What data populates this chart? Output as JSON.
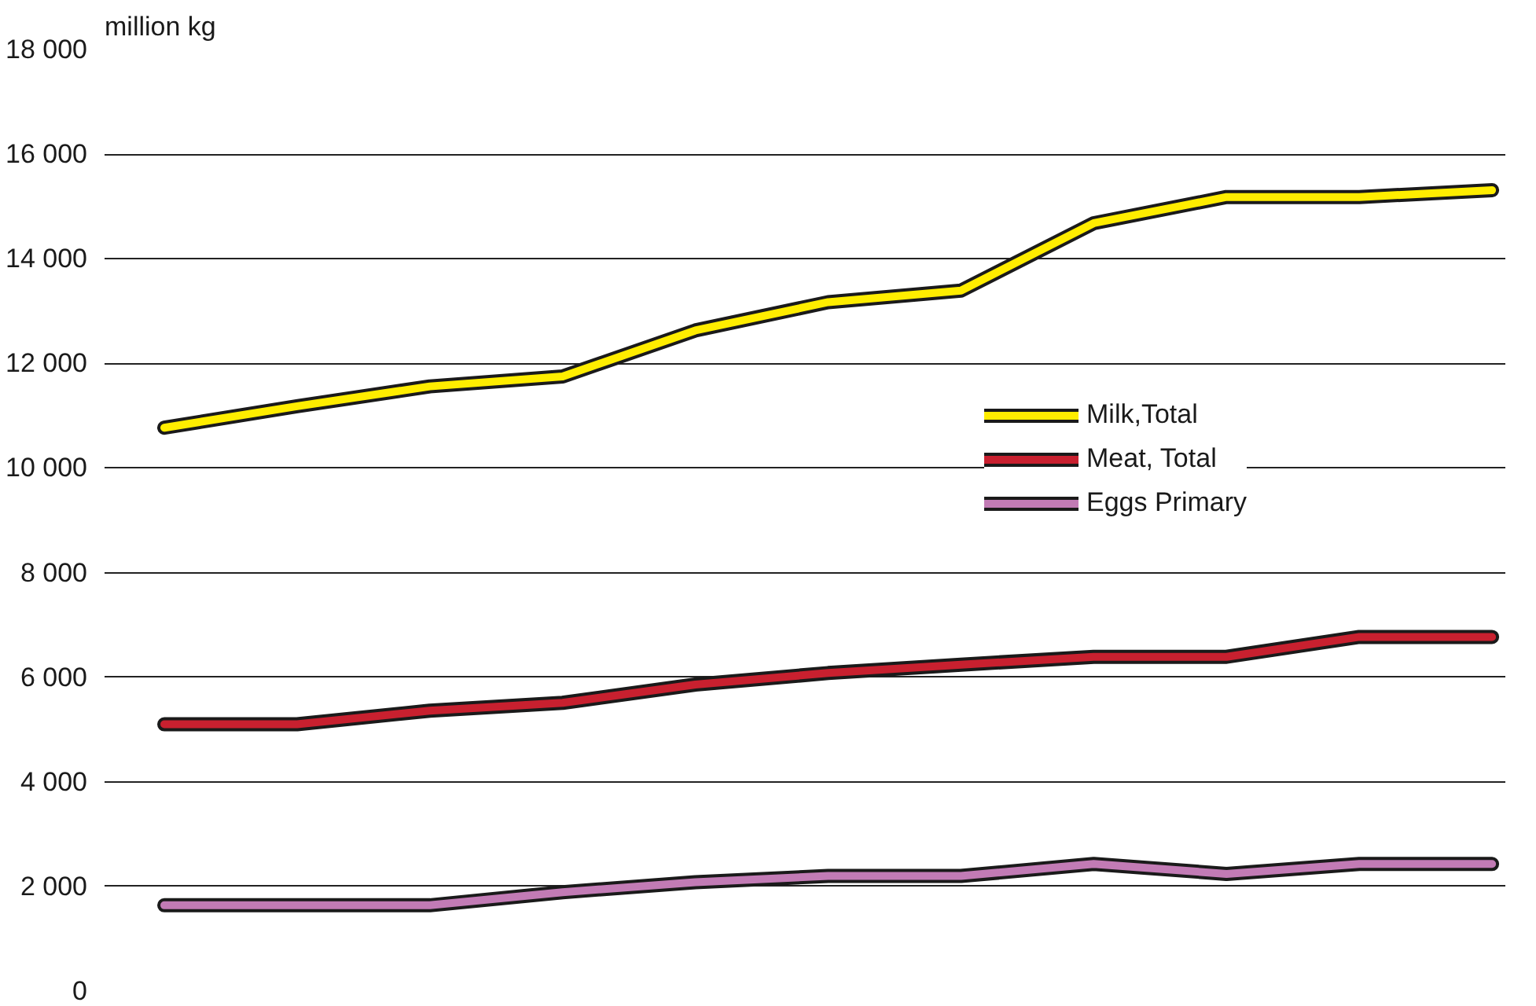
{
  "chart_data": {
    "type": "line",
    "ylabel": "million kg",
    "categories": [
      null,
      null,
      null,
      null,
      null,
      null,
      null,
      null,
      null,
      null,
      null
    ],
    "series": [
      {
        "name": "Milk,Total",
        "color": "#ffed00",
        "values": [
          10770,
          11180,
          11560,
          11750,
          12630,
          13170,
          13390,
          14680,
          15180,
          15180,
          15310
        ]
      },
      {
        "name": "Meat, Total",
        "color": "#c8202f",
        "values": [
          5100,
          5100,
          5360,
          5510,
          5860,
          6080,
          6240,
          6390,
          6390,
          6770,
          6770
        ]
      },
      {
        "name": "Eggs Primary",
        "color": "#c27bb5",
        "values": [
          1640,
          1640,
          1640,
          1890,
          2080,
          2200,
          2200,
          2430,
          2240,
          2430,
          2430
        ]
      }
    ],
    "ylim": [
      0,
      18000
    ],
    "yticks": [
      {
        "value": 0,
        "label": "0"
      },
      {
        "value": 2000,
        "label": "2 000"
      },
      {
        "value": 4000,
        "label": "4 000"
      },
      {
        "value": 6000,
        "label": "6 000"
      },
      {
        "value": 8000,
        "label": "8 000"
      },
      {
        "value": 10000,
        "label": "10 000"
      },
      {
        "value": 12000,
        "label": "12 000"
      },
      {
        "value": 14000,
        "label": "14 000"
      },
      {
        "value": 16000,
        "label": "16 000"
      },
      {
        "value": 18000,
        "label": "18 000"
      }
    ],
    "grid": "y",
    "legend": "right",
    "tick_labels": "y",
    "line_style": "solid",
    "marker": "none"
  }
}
